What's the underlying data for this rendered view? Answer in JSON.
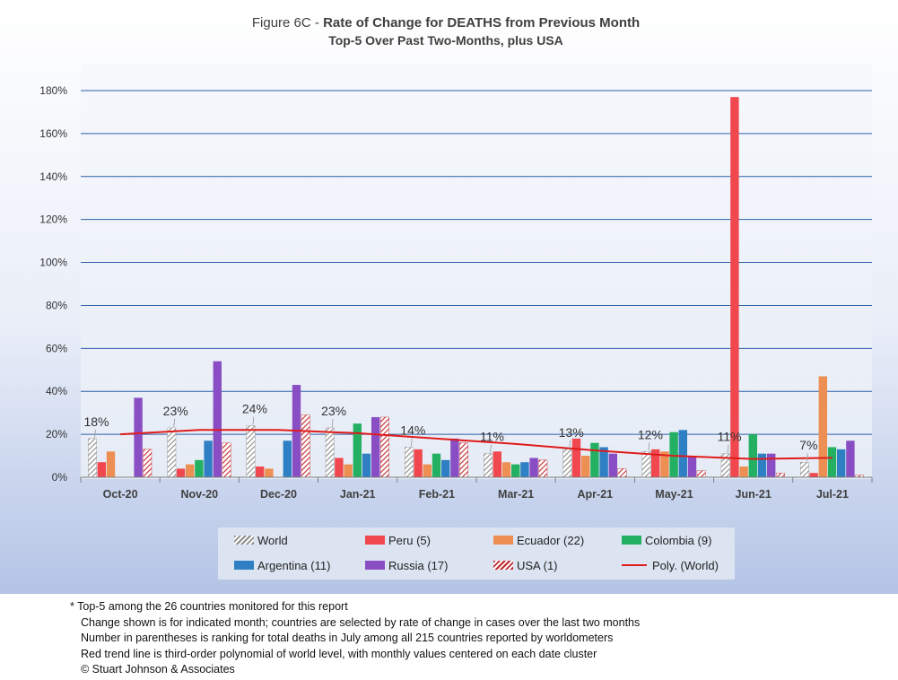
{
  "title": {
    "prefix": "Figure 6C - ",
    "bold": "Rate of Change for DEATHS from Previous Month",
    "line2": "Top-5 Over Past Two-Months, plus USA"
  },
  "chart_data": {
    "type": "bar",
    "categories": [
      "Oct-20",
      "Nov-20",
      "Dec-20",
      "Jan-21",
      "Feb-21",
      "Mar-21",
      "Apr-21",
      "May-21",
      "Jun-21",
      "Jul-21"
    ],
    "ylim": [
      0,
      180
    ],
    "yticks": [
      0,
      20,
      40,
      60,
      80,
      100,
      120,
      140,
      160,
      180
    ],
    "ytick_labels": [
      "0%",
      "20%",
      "40%",
      "60%",
      "80%",
      "100%",
      "120%",
      "140%",
      "160%",
      "180%"
    ],
    "grid": true,
    "legend_position": "bottom",
    "series": [
      {
        "name": "World",
        "pattern": "hatch",
        "color": "#8c8c8c",
        "values": [
          18,
          23,
          24,
          23,
          14,
          11,
          13,
          12,
          11,
          7
        ]
      },
      {
        "name": "Peru (5)",
        "color": "#f0484e",
        "values": [
          7,
          4,
          5,
          9,
          13,
          12,
          18,
          13,
          177,
          2
        ]
      },
      {
        "name": "Ecuador (22)",
        "color": "#ed8f52",
        "values": [
          12,
          6,
          4,
          6,
          6,
          7,
          10,
          12,
          5,
          47
        ]
      },
      {
        "name": "Colombia (9)",
        "color": "#23b062",
        "values": [
          0,
          8,
          0,
          25,
          11,
          6,
          16,
          21,
          20,
          14
        ]
      },
      {
        "name": "Argentina (11)",
        "color": "#2e7fc4",
        "values": [
          0,
          17,
          17,
          11,
          8,
          7,
          14,
          22,
          11,
          13
        ]
      },
      {
        "name": "Russia (17)",
        "color": "#8a4ec4",
        "values": [
          37,
          54,
          43,
          28,
          18,
          9,
          11,
          10,
          11,
          17
        ]
      },
      {
        "name": "USA (1)",
        "pattern": "hatch",
        "color": "#c0282e",
        "values": [
          13,
          16,
          29,
          28,
          16,
          8,
          4,
          3,
          2,
          1
        ]
      }
    ],
    "world_labels": [
      "18%",
      "23%",
      "24%",
      "23%",
      "14%",
      "11%",
      "13%",
      "12%",
      "11%",
      "7%"
    ],
    "trend": {
      "name": "Poly. (World)",
      "color": "#e01b1b",
      "values": [
        20,
        22,
        22,
        20.5,
        18,
        15.5,
        12.5,
        10,
        8.5,
        9
      ]
    }
  },
  "notes": [
    "* Top-5 among the 26 countries monitored for this report",
    "Change shown is for indicated month; countries are selected by rate of change in cases over the last two months",
    "Number in parentheses is ranking for total deaths in July among all 215 countries reported by worldometers",
    "Red trend line is third-order polynomial of world level, with monthly values centered on each date cluster",
    "© Stuart Johnson & Associates"
  ]
}
